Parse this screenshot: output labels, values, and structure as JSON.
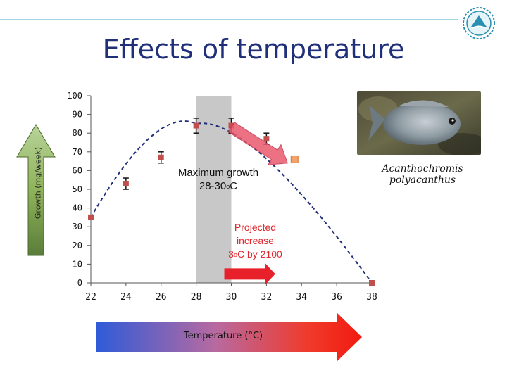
{
  "slide": {
    "title": "Effects of temperature",
    "species": "Acanthochromis polyacanthus",
    "species_line1": "Acanthochromis",
    "species_line2": "polyacanthus",
    "max_growth_line1": "Maximum growth",
    "max_growth_line2_pre": "28-30",
    "max_growth_line2_sup": "o",
    "max_growth_line2_post": "C",
    "projected_line1": "Projected",
    "projected_line2": "increase",
    "projected_line3_pre": "3",
    "projected_line3_sup": "o",
    "projected_line3_post": "C by 2100",
    "colors": {
      "title": "#1f2f7a",
      "marker": "#c0504d",
      "curve": "#1f2f7a",
      "band": "#c8c8c8",
      "projected": "#e0282e"
    }
  },
  "chart_data": {
    "type": "scatter",
    "title": "",
    "xlabel": "Temperature (°C)",
    "ylabel": "Growth (mg/week)",
    "xlim": [
      22,
      38
    ],
    "ylim": [
      0,
      100
    ],
    "x_ticks": [
      "22",
      "24",
      "26",
      "28",
      "30",
      "32",
      "34",
      "36",
      "38"
    ],
    "y_ticks": [
      "0",
      "10",
      "20",
      "30",
      "40",
      "50",
      "60",
      "70",
      "80",
      "90",
      "100"
    ],
    "grid": false,
    "highlight_band": [
      28,
      30
    ],
    "series": [
      {
        "points": [
          {
            "x": 22,
            "y": 35,
            "err": 0
          },
          {
            "x": 24,
            "y": 53,
            "err": 3
          },
          {
            "x": 26,
            "y": 67,
            "err": 3
          },
          {
            "x": 28,
            "y": 84,
            "err": 4
          },
          {
            "x": 30,
            "y": 84,
            "err": 4
          },
          {
            "x": 32,
            "y": 77,
            "err": 3
          },
          {
            "x": 38,
            "y": 0,
            "err": 0
          }
        ]
      }
    ],
    "fitted_curve": "dashed quadratic through the points, peaking near 29",
    "projected_point": {
      "x": 33.6,
      "y": 66
    },
    "projection_arrow": {
      "from": [
        30,
        84
      ],
      "to": [
        33.2,
        64
      ]
    }
  }
}
